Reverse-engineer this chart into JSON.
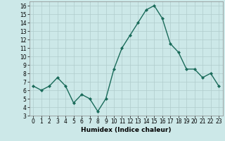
{
  "x": [
    0,
    1,
    2,
    3,
    4,
    5,
    6,
    7,
    8,
    9,
    10,
    11,
    12,
    13,
    14,
    15,
    16,
    17,
    18,
    19,
    20,
    21,
    22,
    23
  ],
  "y": [
    6.5,
    6.0,
    6.5,
    7.5,
    6.5,
    4.5,
    5.5,
    5.0,
    3.5,
    5.0,
    8.5,
    11.0,
    12.5,
    14.0,
    15.5,
    16.0,
    14.5,
    11.5,
    10.5,
    8.5,
    8.5,
    7.5,
    8.0,
    6.5
  ],
  "line_color": "#1a6b5a",
  "marker": "D",
  "marker_size": 2.0,
  "background_color": "#cce8e8",
  "grid_color": "#b0cccc",
  "xlabel": "Humidex (Indice chaleur)",
  "xlim": [
    -0.5,
    23.5
  ],
  "ylim": [
    3,
    16.5
  ],
  "yticks": [
    3,
    4,
    5,
    6,
    7,
    8,
    9,
    10,
    11,
    12,
    13,
    14,
    15,
    16
  ],
  "xticks": [
    0,
    1,
    2,
    3,
    4,
    5,
    6,
    7,
    8,
    9,
    10,
    11,
    12,
    13,
    14,
    15,
    16,
    17,
    18,
    19,
    20,
    21,
    22,
    23
  ],
  "xlabel_fontsize": 6.5,
  "tick_fontsize": 5.5,
  "line_width": 1.0
}
